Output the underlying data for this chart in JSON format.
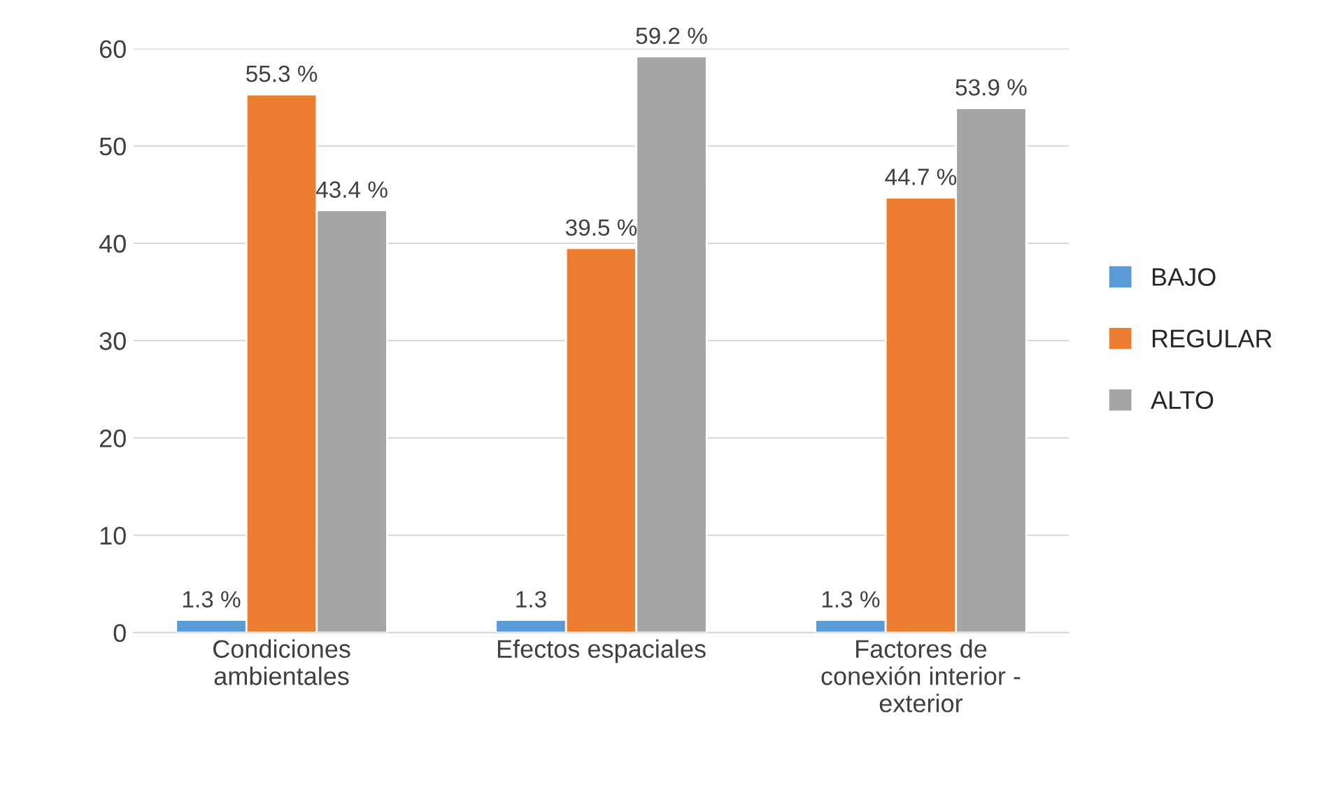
{
  "chart_data": {
    "type": "bar",
    "categories": [
      "Condiciones\nambientales",
      "Efectos espaciales",
      "Factores de\nconexión interior -\nexterior"
    ],
    "series": [
      {
        "name": "BAJO",
        "color": "#5b9bd5",
        "values": [
          1.3,
          1.3,
          1.3
        ],
        "value_labels": [
          "1.3 %",
          "1.3",
          "1.3 %"
        ]
      },
      {
        "name": "REGULAR",
        "color": "#ed7d31",
        "values": [
          55.3,
          39.5,
          44.7
        ],
        "value_labels": [
          "55.3 %",
          "39.5 %",
          "44.7 %"
        ]
      },
      {
        "name": "ALTO",
        "color": "#a5a5a5",
        "values": [
          43.4,
          59.2,
          53.9
        ],
        "value_labels": [
          "43.4 %",
          "59.2 %",
          "53.9 %"
        ]
      }
    ],
    "ylim": [
      0,
      60
    ],
    "yticks": [
      0,
      10,
      20,
      30,
      40,
      50,
      60
    ],
    "grid": "y",
    "legend": "right"
  }
}
